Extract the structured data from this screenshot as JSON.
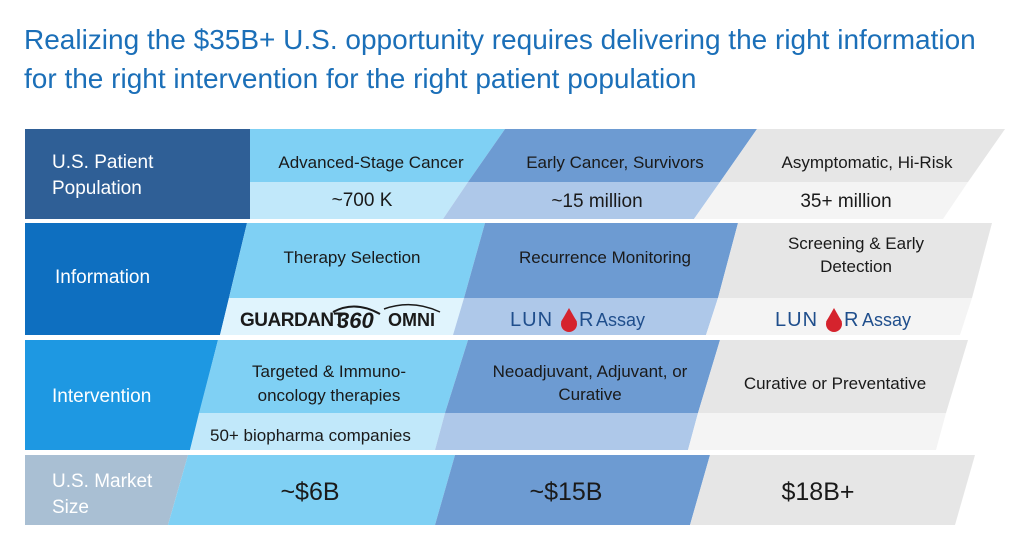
{
  "title": "Realizing the $35B+ U.S. opportunity requires delivering the right information for the right intervention for the right patient population",
  "rows": {
    "population": "U.S. Patient Population",
    "information": "Information",
    "intervention": "Intervention",
    "market": "U.S. Market Size"
  },
  "columns": [
    {
      "population": "Advanced-Stage Cancer",
      "population_size": "~700 K",
      "information": "Therapy Selection",
      "product_logo": "GUARDANT360 OMNI",
      "intervention": "Targeted & Immuno-oncology therapies",
      "intervention_note": "50+ biopharma companies",
      "market": "~$6B"
    },
    {
      "population": "Early Cancer, Survivors",
      "population_size": "~15 million",
      "information": "Recurrence Monitoring",
      "product_logo": "LUNAR",
      "product_suffix": "Assay",
      "intervention": "Neoadjuvant, Adjuvant, or Curative",
      "intervention_note": "",
      "market": "~$15B"
    },
    {
      "population": "Asymptomatic, Hi-Risk",
      "population_size": "35+ million",
      "information": "Screening & Early Detection",
      "product_logo": "LUNAR",
      "product_suffix": "Assay",
      "intervention": "Curative or Preventative",
      "intervention_note": "",
      "market": "$18B+"
    }
  ],
  "colors": {
    "title": "#1b6fb8",
    "label_population": "#2f5f96",
    "label_information": "#0e6fc0",
    "label_intervention": "#1e98e2",
    "label_market": "#a9bfd3",
    "col1_top": "#7fd0f4",
    "col1_sub": "#c1e8fa",
    "col2_top": "#6d9bd2",
    "col2_sub": "#aec8e9",
    "col3_top": "#e6e6e6",
    "col3_sub": "#f4f4f4",
    "lunar_red": "#d5232d",
    "lunar_blue": "#1f4e8c"
  }
}
